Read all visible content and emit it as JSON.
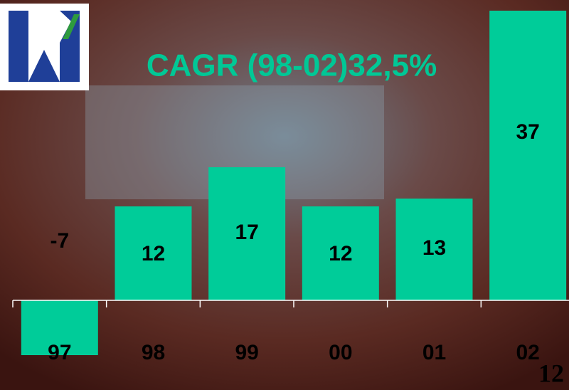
{
  "chart_data": {
    "type": "bar",
    "title": "CAGR (98-02)32,5%",
    "categories": [
      "97",
      "98",
      "99",
      "00",
      "01",
      "02"
    ],
    "values": [
      -7,
      12,
      17,
      12,
      13,
      37
    ],
    "color": "#00cc99",
    "ylim": [
      -8,
      38
    ]
  },
  "page_number": "12"
}
